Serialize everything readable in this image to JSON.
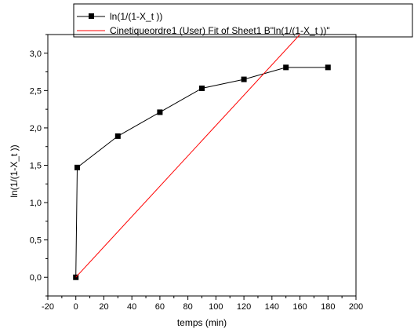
{
  "chart_data": {
    "type": "line",
    "title": "",
    "xlabel": "temps (min)",
    "ylabel": "ln(1/(1-X_t ))",
    "xlim": [
      -20,
      200
    ],
    "ylim": [
      -0.25,
      3.25
    ],
    "xticks": [
      -20,
      0,
      20,
      40,
      60,
      80,
      100,
      120,
      140,
      160,
      180,
      200
    ],
    "xtick_labels": [
      "-20",
      "0",
      "20",
      "40",
      "60",
      "80",
      "100",
      "120",
      "140",
      "160",
      "180",
      "200"
    ],
    "yticks": [
      0.0,
      0.5,
      1.0,
      1.5,
      2.0,
      2.5,
      3.0
    ],
    "ytick_labels": [
      "0,0",
      "0,5",
      "1,0",
      "1,5",
      "2,0",
      "2,5",
      "3,0"
    ],
    "grid": false,
    "legend_position": "top",
    "series": [
      {
        "name": "ln(1/(1-X_t ))",
        "kind": "line-with-square-markers",
        "color": "#000000",
        "x": [
          0,
          1,
          30,
          60,
          90,
          120,
          150,
          180
        ],
        "y": [
          0.0,
          1.47,
          1.89,
          2.21,
          2.53,
          2.65,
          2.81,
          2.81
        ]
      },
      {
        "name": "Cinetiqueordre1 (User) Fit of Sheet1 B\"ln(1/(1-X_t ))\"",
        "kind": "fit-line",
        "color": "#ff0000",
        "x": [
          0,
          160
        ],
        "y": [
          0.0,
          3.25
        ]
      }
    ]
  }
}
